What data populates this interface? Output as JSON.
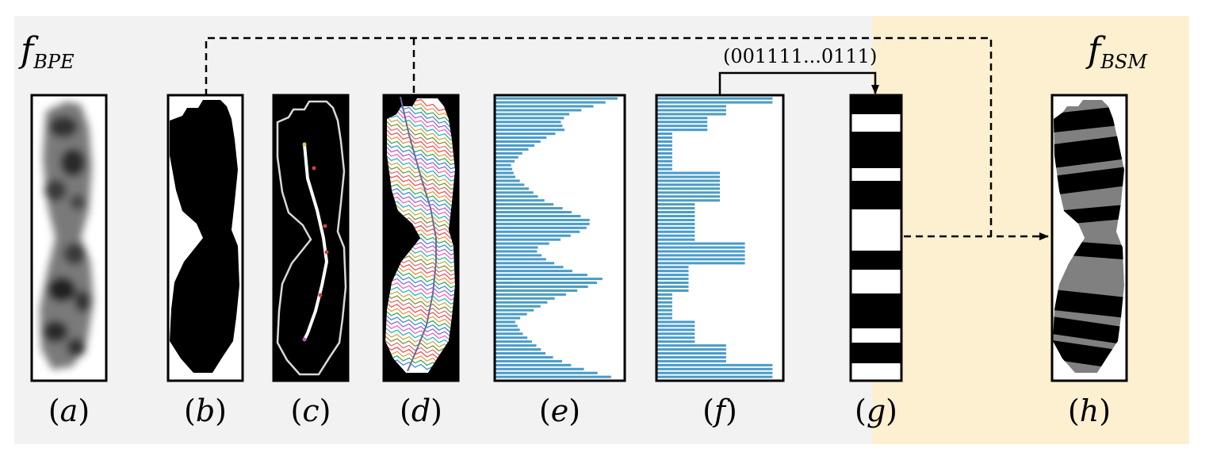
{
  "sections": {
    "bpe": {
      "label_main": "f",
      "label_sub": "BPE",
      "color": "#f2f2f2"
    },
    "bsm": {
      "label_main": "f",
      "label_sub": "BSM",
      "color": "#fdf0d0"
    }
  },
  "panels": [
    {
      "id": "a",
      "label": "a",
      "content": "blurred chromosome grayscale image"
    },
    {
      "id": "b",
      "label": "b",
      "content": "binary chromosome mask"
    },
    {
      "id": "c",
      "label": "c",
      "content": "contour and medial axis"
    },
    {
      "id": "d",
      "label": "d",
      "content": "perpendicular lines along medial axis"
    },
    {
      "id": "e",
      "label": "e",
      "content": "density profile"
    },
    {
      "id": "f",
      "label": "f",
      "content": "quantized density profile"
    },
    {
      "id": "g",
      "label": "g",
      "content": "binary band pattern"
    },
    {
      "id": "h",
      "label": "h",
      "content": "banded chromosome"
    }
  ],
  "bitstring": "(001111...0111)",
  "colors": {
    "bar": "#4a9cc8",
    "band_dark": "#000000",
    "band_gray": "#808080"
  }
}
